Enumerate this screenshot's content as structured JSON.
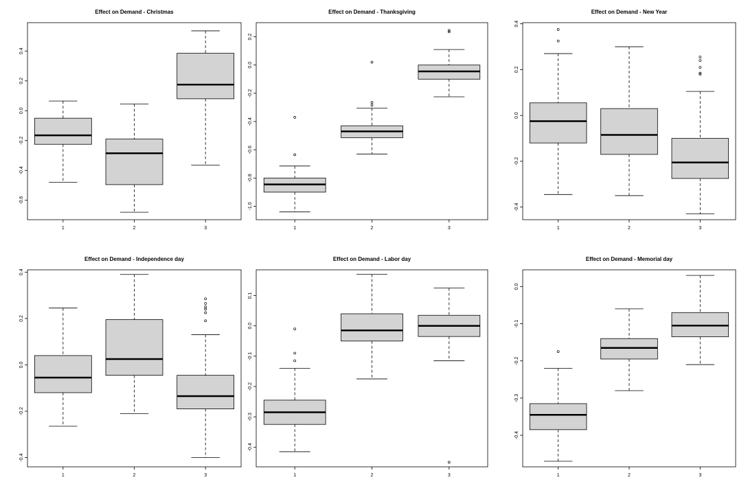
{
  "chart_data": [
    {
      "type": "boxplot",
      "title": "Effect on Demand - Christmas",
      "categories": [
        "1",
        "2",
        "3"
      ],
      "ylim": [
        -0.73,
        0.59
      ],
      "yticks": [
        -0.6,
        -0.4,
        -0.2,
        0.0,
        0.2,
        0.4
      ],
      "ytick_labels": [
        "-0.6",
        "-0.4",
        "-0.2",
        "0.0",
        "0.2",
        "0.4"
      ],
      "boxes": [
        {
          "category": "1",
          "whisker_low": -0.48,
          "q1": -0.225,
          "median": -0.165,
          "q3": -0.05,
          "whisker_high": 0.065,
          "outliers": []
        },
        {
          "category": "2",
          "whisker_low": -0.68,
          "q1": -0.495,
          "median": -0.285,
          "q3": -0.19,
          "whisker_high": 0.045,
          "outliers": []
        },
        {
          "category": "3",
          "whisker_low": -0.365,
          "q1": 0.08,
          "median": 0.175,
          "q3": 0.385,
          "whisker_high": 0.535,
          "outliers": []
        }
      ]
    },
    {
      "type": "boxplot",
      "title": "Effect on Demand - Thanksgiving",
      "categories": [
        "1",
        "2",
        "3"
      ],
      "ylim": [
        -1.095,
        0.3
      ],
      "yticks": [
        -1.0,
        -0.8,
        -0.6,
        -0.4,
        -0.2,
        0.0,
        0.2
      ],
      "ytick_labels": [
        "-1.0",
        "-0.8",
        "-0.6",
        "-0.4",
        "-0.2",
        "0.0",
        "0.2"
      ],
      "boxes": [
        {
          "category": "1",
          "whisker_low": -1.04,
          "q1": -0.9,
          "median": -0.845,
          "q3": -0.8,
          "whisker_high": -0.715,
          "outliers": [
            -0.635,
            -0.37
          ]
        },
        {
          "category": "2",
          "whisker_low": -0.63,
          "q1": -0.515,
          "median": -0.47,
          "q3": -0.43,
          "whisker_high": -0.305,
          "outliers": [
            -0.285,
            -0.265,
            0.02
          ]
        },
        {
          "category": "3",
          "whisker_low": -0.225,
          "q1": -0.1,
          "median": -0.045,
          "q3": 0.0,
          "whisker_high": 0.11,
          "outliers": [
            0.235,
            0.245
          ]
        }
      ]
    },
    {
      "type": "boxplot",
      "title": "Effect on Demand - New Year",
      "categories": [
        "1",
        "2",
        "3"
      ],
      "ylim": [
        -0.455,
        0.405
      ],
      "yticks": [
        -0.4,
        -0.2,
        0.0,
        0.2,
        0.4
      ],
      "ytick_labels": [
        "-0.4",
        "-0.2",
        "0.0",
        "0.2",
        "0.4"
      ],
      "boxes": [
        {
          "category": "1",
          "whisker_low": -0.345,
          "q1": -0.12,
          "median": -0.025,
          "q3": 0.055,
          "whisker_high": 0.27,
          "outliers": [
            0.325,
            0.375
          ]
        },
        {
          "category": "2",
          "whisker_low": -0.35,
          "q1": -0.17,
          "median": -0.085,
          "q3": 0.03,
          "whisker_high": 0.3,
          "outliers": []
        },
        {
          "category": "3",
          "whisker_low": -0.43,
          "q1": -0.275,
          "median": -0.205,
          "q3": -0.1,
          "whisker_high": 0.105,
          "outliers": [
            0.18,
            0.185,
            0.21,
            0.24,
            0.255
          ]
        }
      ]
    },
    {
      "type": "boxplot",
      "title": "Effect on Demand - Independence day",
      "categories": [
        "1",
        "2",
        "3"
      ],
      "ylim": [
        -0.44,
        0.41
      ],
      "yticks": [
        -0.4,
        -0.2,
        0.0,
        0.2,
        0.4
      ],
      "ytick_labels": [
        "-0.4",
        "-0.2",
        "0.0",
        "0.2",
        "0.4"
      ],
      "boxes": [
        {
          "category": "1",
          "whisker_low": -0.265,
          "q1": -0.12,
          "median": -0.055,
          "q3": 0.04,
          "whisker_high": 0.245,
          "outliers": []
        },
        {
          "category": "2",
          "whisker_low": -0.21,
          "q1": -0.045,
          "median": 0.025,
          "q3": 0.195,
          "whisker_high": 0.39,
          "outliers": []
        },
        {
          "category": "3",
          "whisker_low": -0.4,
          "q1": -0.19,
          "median": -0.135,
          "q3": -0.045,
          "whisker_high": 0.13,
          "outliers": [
            0.19,
            0.225,
            0.24,
            0.25,
            0.265,
            0.285
          ]
        }
      ]
    },
    {
      "type": "boxplot",
      "title": "Effect on Demand - Labor day",
      "categories": [
        "1",
        "2",
        "3"
      ],
      "ylim": [
        -0.465,
        0.185
      ],
      "yticks": [
        -0.4,
        -0.3,
        -0.2,
        -0.1,
        0.0,
        0.1
      ],
      "ytick_labels": [
        "-0.4",
        "-0.3",
        "-0.2",
        "-0.1",
        "0.0",
        "0.1"
      ],
      "boxes": [
        {
          "category": "1",
          "whisker_low": -0.415,
          "q1": -0.325,
          "median": -0.285,
          "q3": -0.245,
          "whisker_high": -0.14,
          "outliers": [
            -0.115,
            -0.09,
            -0.01
          ]
        },
        {
          "category": "2",
          "whisker_low": -0.175,
          "q1": -0.05,
          "median": -0.015,
          "q3": 0.04,
          "whisker_high": 0.17,
          "outliers": []
        },
        {
          "category": "3",
          "whisker_low": -0.115,
          "q1": -0.035,
          "median": 0.0,
          "q3": 0.035,
          "whisker_high": 0.125,
          "outliers": [
            -0.45
          ]
        }
      ]
    },
    {
      "type": "boxplot",
      "title": "Effect on Demand - Memorial day",
      "categories": [
        "1",
        "2",
        "3"
      ],
      "ylim": [
        -0.485,
        0.045
      ],
      "yticks": [
        -0.4,
        -0.3,
        -0.2,
        -0.1,
        0.0
      ],
      "ytick_labels": [
        "-0.4",
        "-0.3",
        "-0.2",
        "-0.1",
        "0.0"
      ],
      "boxes": [
        {
          "category": "1",
          "whisker_low": -0.47,
          "q1": -0.385,
          "median": -0.345,
          "q3": -0.315,
          "whisker_high": -0.22,
          "outliers": [
            -0.175
          ]
        },
        {
          "category": "2",
          "whisker_low": -0.28,
          "q1": -0.195,
          "median": -0.165,
          "q3": -0.14,
          "whisker_high": -0.06,
          "outliers": []
        },
        {
          "category": "3",
          "whisker_low": -0.21,
          "q1": -0.135,
          "median": -0.105,
          "q3": -0.07,
          "whisker_high": 0.03,
          "outliers": []
        }
      ]
    }
  ],
  "colors": {
    "box_fill": "#d3d3d3",
    "line": "#000000",
    "background": "#ffffff"
  }
}
